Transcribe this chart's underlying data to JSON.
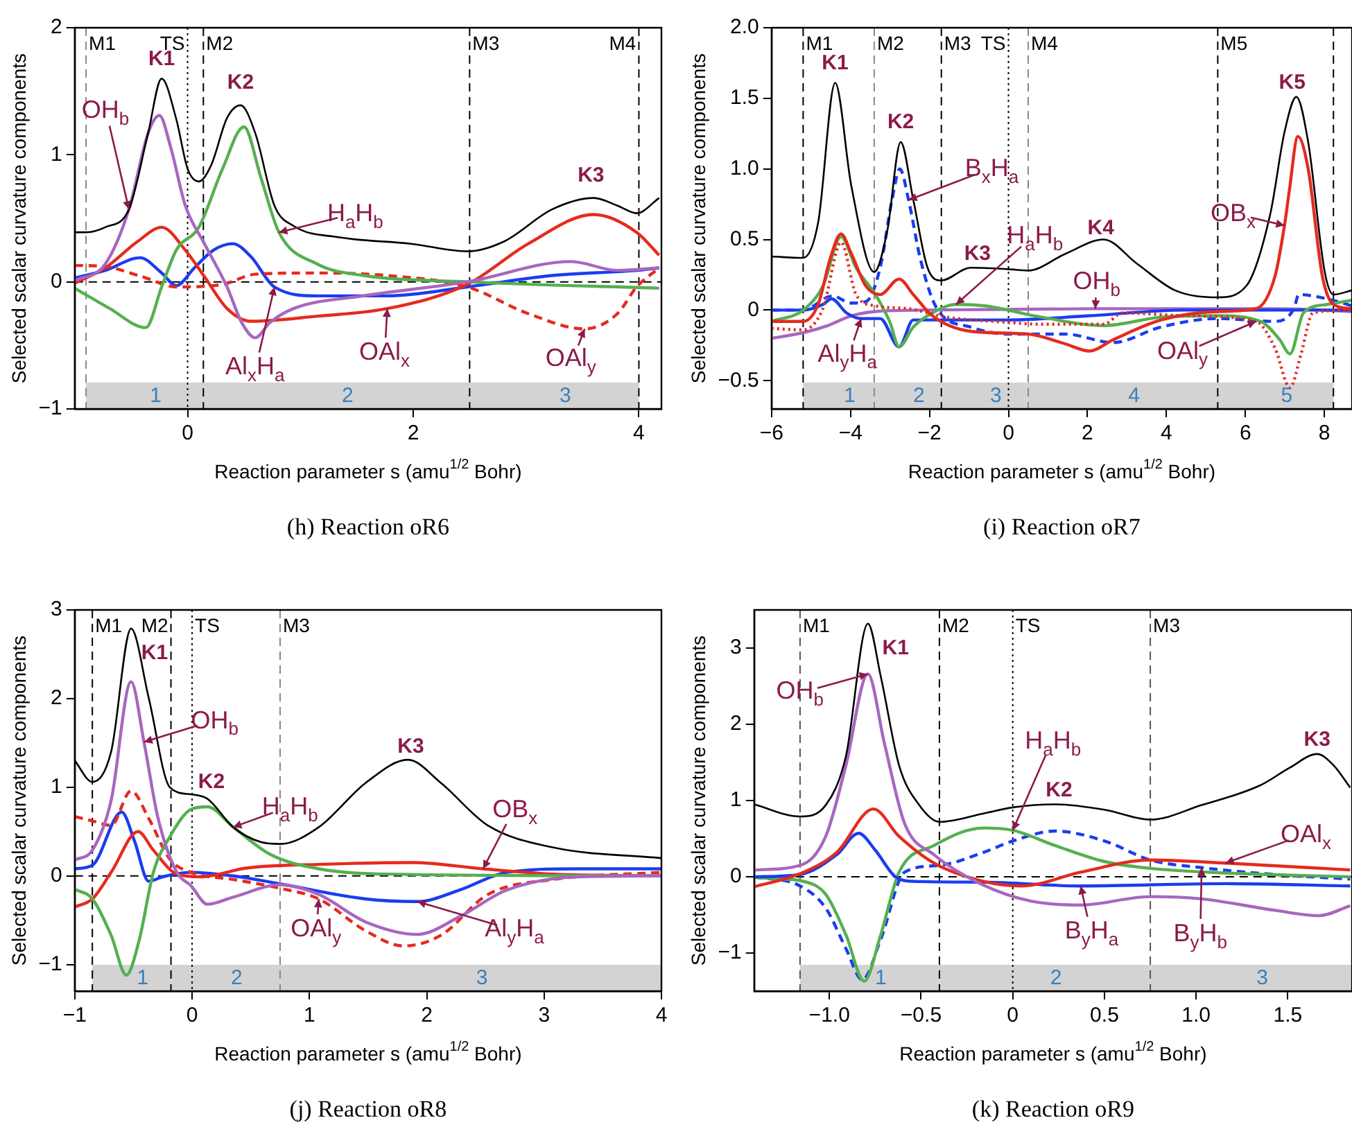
{
  "chart_data": [
    {
      "type": "line",
      "title": "(h) Reaction oR6",
      "xlabel": "Reaction parameter s (amu$^{1/2}$ Bohr)",
      "ylabel": "Selected scalar curvature components",
      "xlim": [
        -1,
        4.2
      ],
      "ylim": [
        -1,
        2
      ],
      "xticks": [
        0,
        2,
        4
      ],
      "yticks": [
        {
          "value": -1,
          "label": "−1"
        },
        0,
        1,
        2
      ],
      "grid": false,
      "legend": false,
      "series": [
        {
          "color": "#000000",
          "x": [
            -1.0,
            -0.9,
            -0.73,
            -0.52,
            -0.35,
            -0.23,
            -0.1,
            0,
            0.1,
            0.21,
            0.35,
            0.47,
            0.6,
            0.77,
            0.94,
            1.35,
            1.98,
            2.48,
            2.81,
            3.23,
            3.6,
            3.81,
            3.98,
            4.18
          ],
          "values": [
            0.39,
            0.39,
            0.43,
            0.57,
            1.17,
            1.6,
            1.28,
            0.89,
            0.79,
            0.92,
            1.29,
            1.39,
            1.17,
            0.6,
            0.44,
            0.35,
            0.3,
            0.24,
            0.32,
            0.57,
            0.66,
            0.6,
            0.54,
            0.66
          ]
        },
        {
          "color": "#a866c0",
          "x": [
            -1.0,
            -0.73,
            -0.52,
            -0.35,
            -0.25,
            -0.15,
            -0.02,
            0.15,
            0.35,
            0.48,
            0.6,
            0.73,
            0.94,
            1.56,
            2.48,
            3.4,
            3.81,
            4.18
          ],
          "values": [
            0.01,
            0.14,
            0.57,
            1.17,
            1.31,
            1.06,
            0.6,
            0.3,
            -0.04,
            -0.32,
            -0.44,
            -0.32,
            -0.21,
            -0.11,
            0,
            0.16,
            0.09,
            0.11
          ]
        },
        {
          "color": "#55b04f",
          "x": [
            -1.0,
            -0.69,
            -0.37,
            -0.23,
            -0.1,
            0.1,
            0.31,
            0.5,
            0.65,
            0.81,
            1.15,
            1.56,
            2.48,
            4.18
          ],
          "values": [
            -0.05,
            -0.21,
            -0.36,
            -0.04,
            0.25,
            0.43,
            0.89,
            1.22,
            0.82,
            0.39,
            0.14,
            0.05,
            0,
            -0.05
          ]
        },
        {
          "color": "#e62a1e",
          "x": [
            -1.0,
            -0.73,
            -0.44,
            -0.23,
            -0.02,
            0.15,
            0.35,
            0.56,
            1.15,
            1.77,
            2.48,
            3.02,
            3.6,
            3.98,
            4.18
          ],
          "values": [
            -0.01,
            0.11,
            0.32,
            0.43,
            0.25,
            0.04,
            -0.21,
            -0.31,
            -0.27,
            -0.21,
            -0.02,
            0.3,
            0.53,
            0.39,
            0.21
          ]
        },
        {
          "color": "#e62a1e",
          "line_style": "dashed",
          "x": [
            -1.0,
            -0.73,
            -0.4,
            -0.1,
            0.31,
            0.6,
            1.15,
            1.77,
            2.48,
            3.02,
            3.52,
            3.81,
            3.98,
            4.18
          ],
          "values": [
            0.13,
            0.12,
            0.04,
            -0.04,
            -0.02,
            0.06,
            0.07,
            0.05,
            -0.04,
            -0.25,
            -0.37,
            -0.25,
            -0.04,
            0.11
          ]
        },
        {
          "color": "#1a3cf0",
          "x": [
            -1.0,
            -0.73,
            -0.42,
            -0.23,
            -0.1,
            0.06,
            0.23,
            0.4,
            0.56,
            0.77,
            1.15,
            1.77,
            2.48,
            3.23,
            3.98,
            4.18
          ],
          "values": [
            0.03,
            0.09,
            0.19,
            0.07,
            -0.03,
            0.11,
            0.25,
            0.3,
            0.2,
            -0.04,
            -0.11,
            -0.11,
            -0.04,
            0.05,
            0.09,
            0.11
          ]
        }
      ],
      "ref_lines": [
        {
          "axis": "y",
          "value": 0,
          "line_style": "dashed",
          "color": "#000000"
        },
        {
          "axis": "x",
          "value": -0.9,
          "label": "M1",
          "line_style": "dashed",
          "color": "#888888"
        },
        {
          "axis": "x",
          "value": 0,
          "label": "TS",
          "line_style": "dotted",
          "color": "#000000"
        },
        {
          "axis": "x",
          "value": 0.14,
          "label": "M2",
          "line_style": "dashed",
          "color": "#000000"
        },
        {
          "axis": "x",
          "value": 2.5,
          "label": "M3",
          "line_style": "dashed",
          "color": "#000000"
        },
        {
          "axis": "x",
          "value": 4.0,
          "label": "M4",
          "line_style": "dashed",
          "color": "#000000"
        }
      ],
      "bands": [
        {
          "axis": "x",
          "from": -0.9,
          "to": 0.14,
          "label": "1",
          "color": "#d3d3d3"
        },
        {
          "axis": "x",
          "from": 0.14,
          "to": 2.5,
          "label": "2",
          "color": "#d3d3d3"
        },
        {
          "axis": "x",
          "from": 2.5,
          "to": 4.0,
          "label": "3",
          "color": "#d3d3d3"
        }
      ],
      "annotations": [
        {
          "text": "K1",
          "x": -0.23,
          "y": 1.6
        },
        {
          "text": "K2",
          "x": 0.47,
          "y": 1.39
        },
        {
          "text": "K3",
          "x": 3.6,
          "y": 0.66
        },
        {
          "text": "OH$_{b}$",
          "x": -0.52,
          "y": 0.57
        },
        {
          "text": "H$_{a}$H$_{b}$",
          "x": 0.81,
          "y": 0.39
        },
        {
          "text": "Al$_{x}$H$_{a}$",
          "x": 0.77,
          "y": -0.04
        },
        {
          "text": "OAl$_{x}$",
          "x": 1.77,
          "y": -0.21
        },
        {
          "text": "OAl$_{y}$",
          "x": 3.52,
          "y": -0.37
        }
      ]
    },
    {
      "type": "line",
      "title": "(i) Reaction oR7",
      "xlabel": "Reaction parameter s (amu$^{1/2}$ Bohr)",
      "ylabel": "Selected scalar curvature components",
      "xlim": [
        -6,
        8.7
      ],
      "ylim": [
        -0.7,
        2.0
      ],
      "xticks": [
        {
          "value": -6,
          "label": "−6"
        },
        {
          "value": -4,
          "label": "−4"
        },
        {
          "value": -2,
          "label": "−2"
        },
        0,
        2,
        4,
        6,
        8
      ],
      "yticks": [
        {
          "value": -0.5,
          "label": "−0.5"
        },
        0,
        {
          "value": 0.5,
          "label": "0.5"
        },
        {
          "value": 1,
          "label": "1.0"
        },
        {
          "value": 1.5,
          "label": "1.5"
        },
        {
          "value": 2,
          "label": "2.0"
        }
      ],
      "grid": false,
      "legend": false,
      "series": [
        {
          "color": "#000000",
          "x": [
            -6,
            -5.2,
            -4.82,
            -4.39,
            -3.98,
            -3.4,
            -3.07,
            -2.73,
            -2.41,
            -2.05,
            -1.7,
            -0.96,
            0,
            0.5,
            1.45,
            2.41,
            3.25,
            4.22,
            5.3,
            6.02,
            6.63,
            6.99,
            7.29,
            7.59,
            8.01,
            8.23,
            8.7
          ],
          "values": [
            0.38,
            0.37,
            0.62,
            1.61,
            0.88,
            0.27,
            0.56,
            1.19,
            0.78,
            0.3,
            0.21,
            0.3,
            0.29,
            0.28,
            0.4,
            0.5,
            0.33,
            0.14,
            0.09,
            0.17,
            0.68,
            1.26,
            1.51,
            1.19,
            0.27,
            0.11,
            0.14
          ]
        },
        {
          "color": "#e62a1e",
          "x": [
            -6,
            -5.2,
            -4.82,
            -4.52,
            -4.24,
            -3.98,
            -3.61,
            -3.25,
            -2.77,
            -2.41,
            -1.93,
            -0.96,
            0.5,
            1.45,
            2.05,
            2.65,
            3.86,
            5.3,
            6.27,
            6.75,
            6.99,
            7.11,
            7.33,
            7.59,
            7.95,
            8.23,
            8.7
          ],
          "values": [
            -0.08,
            -0.08,
            0.04,
            0.36,
            0.54,
            0.4,
            0.17,
            0.11,
            0.22,
            0.11,
            -0.04,
            -0.15,
            -0.17,
            -0.24,
            -0.29,
            -0.21,
            -0.07,
            -0.01,
            0.01,
            0.24,
            0.6,
            0.84,
            1.23,
            1.0,
            0.24,
            0.04,
            0.01
          ]
        },
        {
          "color": "#e62a1e",
          "line_style": "dotted",
          "x": [
            -6,
            -5.2,
            -4.7,
            -4.24,
            -3.86,
            -3.37,
            -2.53,
            -1.57,
            -0.36,
            0.84,
            2.41,
            2.89,
            4.46,
            6.27,
            6.75,
            7.13,
            7.41,
            7.71,
            8.7
          ],
          "values": [
            -0.13,
            -0.14,
            0.01,
            0.48,
            0.11,
            0.03,
            0.01,
            -0.05,
            -0.08,
            -0.1,
            -0.1,
            -0.02,
            -0.04,
            -0.08,
            -0.27,
            -0.55,
            -0.31,
            -0.02,
            0
          ]
        },
        {
          "color": "#55b04f",
          "x": [
            -6,
            -5.2,
            -4.7,
            -4.24,
            -3.86,
            -3.37,
            -3.01,
            -2.77,
            -2.41,
            -1.93,
            -1.33,
            -0.6,
            0.84,
            2.41,
            3.86,
            5.3,
            6.39,
            6.87,
            7.13,
            7.47,
            8.07,
            8.7
          ],
          "values": [
            -0.08,
            0,
            0.17,
            0.52,
            0.3,
            0.11,
            -0.08,
            -0.26,
            -0.12,
            -0.02,
            0.04,
            0.03,
            -0.05,
            -0.11,
            -0.05,
            -0.04,
            -0.08,
            -0.21,
            -0.31,
            -0.02,
            0.04,
            0.07
          ]
        },
        {
          "color": "#1a3cf0",
          "x": [
            -6,
            -5.2,
            -4.7,
            -4.48,
            -4.1,
            -3.73,
            -3.25,
            -2.77,
            -2.41,
            -1.57,
            0,
            2.05,
            4.46,
            8.7
          ],
          "values": [
            0,
            0,
            0.04,
            0.08,
            -0.02,
            -0.06,
            -0.06,
            -0.26,
            -0.07,
            -0.07,
            -0.07,
            -0.04,
            0,
            0
          ]
        },
        {
          "color": "#1a3cf0",
          "line_style": "dashed",
          "x": [
            -6,
            -5.2,
            -4.46,
            -3.98,
            -3.61,
            -3.25,
            -2.95,
            -2.75,
            -2.53,
            -2.23,
            -1.81,
            -0.96,
            0,
            1.45,
            2.65,
            3.86,
            5.3,
            6.75,
            7.23,
            7.35,
            8.07,
            8.7
          ],
          "values": [
            0,
            0,
            0.1,
            0.05,
            0.06,
            0.3,
            0.78,
            1.0,
            0.78,
            0.36,
            0.01,
            -0.12,
            -0.17,
            -0.17,
            -0.23,
            -0.12,
            -0.06,
            -0.08,
            0.01,
            0.11,
            0.08,
            0.03
          ]
        },
        {
          "color": "#a866c0",
          "x": [
            -6,
            -5.2,
            -4.58,
            -3.98,
            -3.37,
            -2.17,
            2.2,
            3.25,
            6.87,
            8.7
          ],
          "values": [
            -0.2,
            -0.16,
            -0.11,
            -0.04,
            -0.01,
            0,
            0.01,
            0.01,
            0.01,
            -0.01
          ]
        }
      ],
      "ref_lines": [
        {
          "axis": "x",
          "value": -5.2,
          "label": "M1",
          "line_style": "dashed",
          "color": "#000000"
        },
        {
          "axis": "x",
          "value": -3.4,
          "label": "M2",
          "line_style": "dashed",
          "color": "#888888"
        },
        {
          "axis": "x",
          "value": -1.7,
          "label": "M3",
          "line_style": "dashed",
          "color": "#000000"
        },
        {
          "axis": "x",
          "value": 0,
          "label": "TS",
          "line_style": "dotted",
          "color": "#000000"
        },
        {
          "axis": "x",
          "value": 0.5,
          "label": "M4",
          "line_style": "dashed",
          "color": "#888888"
        },
        {
          "axis": "x",
          "value": 5.3,
          "label": "M5",
          "line_style": "dashed",
          "color": "#000000"
        },
        {
          "axis": "x",
          "value": 8.23,
          "label": null,
          "line_style": "dashed",
          "color": "#000000"
        }
      ],
      "bands": [
        {
          "axis": "x",
          "from": -5.2,
          "to": -3.4,
          "label": "1",
          "color": "#d3d3d3"
        },
        {
          "axis": "x",
          "from": -3.4,
          "to": -1.7,
          "label": "2",
          "color": "#d3d3d3"
        },
        {
          "axis": "x",
          "from": -1.7,
          "to": 0.5,
          "label": "3",
          "color": "#d3d3d3"
        },
        {
          "axis": "x",
          "from": 0.5,
          "to": 5.3,
          "label": "4",
          "color": "#d3d3d3"
        },
        {
          "axis": "x",
          "from": 5.3,
          "to": 8.23,
          "label": "5",
          "color": "#d3d3d3"
        }
      ],
      "annotations": [
        {
          "text": "K1",
          "x": -4.39,
          "y": 1.61
        },
        {
          "text": "K2",
          "x": -2.73,
          "y": 1.19
        },
        {
          "text": "K3",
          "x": -0.96,
          "y": 0.3
        },
        {
          "text": "K4",
          "x": 2.41,
          "y": 0.5
        },
        {
          "text": "K5",
          "x": 7.29,
          "y": 1.51
        },
        {
          "text": "B$_{x}$H$_{a}$",
          "x": -2.53,
          "y": 0.78
        },
        {
          "text": "H$_{a}$H$_{b}$",
          "x": -1.33,
          "y": 0.04
        },
        {
          "text": "OH$_{b}$",
          "x": 2.2,
          "y": 0.01
        },
        {
          "text": "OB$_{x}$",
          "x": 6.99,
          "y": 0.6
        },
        {
          "text": "OAl$_{y}$",
          "x": 6.27,
          "y": -0.08
        },
        {
          "text": "Al$_{y}$H$_{a}$",
          "x": -3.73,
          "y": -0.06
        }
      ]
    },
    {
      "type": "line",
      "title": "(j) Reaction oR8",
      "xlabel": "Reaction parameter s (amu$^{1/2}$ Bohr)",
      "ylabel": "Selected scalar curvature components",
      "xlim": [
        -1,
        4
      ],
      "ylim": [
        -1.3,
        3
      ],
      "xticks": [
        {
          "value": -1,
          "label": "−1"
        },
        0,
        1,
        2,
        3,
        4
      ],
      "yticks": [
        {
          "value": -1,
          "label": "−1"
        },
        0,
        1,
        2,
        3
      ],
      "grid": false,
      "legend": false,
      "series": [
        {
          "color": "#000000",
          "x": [
            -1,
            -0.85,
            -0.69,
            -0.52,
            -0.37,
            -0.19,
            -0.01,
            0.13,
            0.35,
            0.59,
            0.75,
            1.08,
            1.48,
            1.84,
            2.12,
            2.52,
            3.08,
            4.0
          ],
          "values": [
            1.3,
            1.06,
            1.4,
            2.79,
            2.01,
            1.0,
            0.92,
            0.87,
            0.55,
            0.38,
            0.36,
            0.55,
            1.05,
            1.31,
            1.05,
            0.57,
            0.32,
            0.2
          ]
        },
        {
          "color": "#a866c0",
          "x": [
            -1,
            -0.85,
            -0.69,
            -0.52,
            -0.41,
            -0.29,
            -0.13,
            -0.01,
            0.13,
            0.35,
            0.75,
            1.08,
            1.48,
            1.92,
            2.28,
            2.68,
            3.29,
            4.0
          ],
          "values": [
            0.18,
            0.29,
            0.85,
            2.19,
            1.51,
            0.65,
            0.04,
            -0.11,
            -0.32,
            -0.24,
            -0.1,
            -0.21,
            -0.52,
            -0.66,
            -0.46,
            -0.16,
            -0.01,
            0
          ]
        },
        {
          "color": "#55b04f",
          "x": [
            -1,
            -0.85,
            -0.69,
            -0.56,
            -0.45,
            -0.33,
            -0.19,
            -0.01,
            0.13,
            0.35,
            0.67,
            1.08,
            1.68,
            4.0
          ],
          "values": [
            -0.15,
            -0.26,
            -0.67,
            -1.12,
            -0.72,
            0.04,
            0.44,
            0.75,
            0.78,
            0.55,
            0.24,
            0.08,
            0.02,
            0
          ]
        },
        {
          "color": "#e62a1e",
          "line_style": "dashed",
          "x": [
            -1,
            -0.85,
            -0.69,
            -0.52,
            -0.37,
            -0.19,
            -0.01,
            0.35,
            0.75,
            1.08,
            1.48,
            1.8,
            2.12,
            2.52,
            3.08,
            4.0
          ],
          "values": [
            0.67,
            0.62,
            0.57,
            0.96,
            0.65,
            0.19,
            0.04,
            -0.04,
            -0.14,
            -0.26,
            -0.62,
            -0.79,
            -0.67,
            -0.21,
            -0.04,
            0.04
          ]
        },
        {
          "color": "#e62a1e",
          "x": [
            -1,
            -0.85,
            -0.69,
            -0.46,
            -0.33,
            -0.13,
            0.07,
            0.47,
            1.08,
            1.88,
            2.48,
            3.08,
            4.0
          ],
          "values": [
            -0.35,
            -0.26,
            0.04,
            0.5,
            0.29,
            0.02,
            -0.01,
            0.09,
            0.13,
            0.15,
            0.08,
            0.02,
            0
          ]
        },
        {
          "color": "#1a3cf0",
          "x": [
            -1,
            -0.85,
            -0.6,
            -0.49,
            -0.37,
            -0.25,
            -0.01,
            0.35,
            0.75,
            1.48,
            1.92,
            2.28,
            2.68,
            3.29,
            4.0
          ],
          "values": [
            0.08,
            0.12,
            0.72,
            0.39,
            -0.06,
            -0.01,
            0.04,
            0,
            -0.09,
            -0.26,
            -0.29,
            -0.16,
            0.04,
            0.08,
            0.08
          ]
        }
      ],
      "ref_lines": [
        {
          "axis": "y",
          "value": 0,
          "line_style": "dashed",
          "color": "#000000"
        },
        {
          "axis": "x",
          "value": -0.85,
          "label": "M1",
          "line_style": "dashed",
          "color": "#000000"
        },
        {
          "axis": "x",
          "value": -0.18,
          "label": "M2",
          "line_style": "dashed",
          "color": "#000000"
        },
        {
          "axis": "x",
          "value": 0,
          "label": "TS",
          "line_style": "dotted",
          "color": "#000000"
        },
        {
          "axis": "x",
          "value": 0.75,
          "label": "M3",
          "line_style": "dashed",
          "color": "#888888"
        }
      ],
      "bands": [
        {
          "axis": "x",
          "from": -0.85,
          "to": -0.18,
          "label": "1",
          "color": "#d3d3d3"
        },
        {
          "axis": "x",
          "from": -0.18,
          "to": 0.75,
          "label": "2",
          "color": "#d3d3d3"
        },
        {
          "axis": "x",
          "from": 0.75,
          "to": 4,
          "label": "3",
          "color": "#d3d3d3"
        }
      ],
      "annotations": [
        {
          "text": "K1",
          "x": -0.52,
          "y": 2.79
        },
        {
          "text": "K2",
          "x": 0.13,
          "y": 0.87
        },
        {
          "text": "K3",
          "x": 1.84,
          "y": 1.31
        },
        {
          "text": "OH$_{b}$",
          "x": -0.41,
          "y": 1.51
        },
        {
          "text": "H$_{a}$H$_{b}$",
          "x": 0.35,
          "y": 0.55
        },
        {
          "text": "OB$_{x}$",
          "x": 2.48,
          "y": 0.08
        },
        {
          "text": "OAl$_{y}$",
          "x": 1.08,
          "y": -0.26
        },
        {
          "text": "Al$_{y}$H$_{a}$",
          "x": 1.92,
          "y": -0.29
        }
      ]
    },
    {
      "type": "line",
      "title": "(k) Reaction oR9",
      "xlabel": "Reaction parameter s (amu$^{1/2}$ Bohr)",
      "ylabel": "Selected scalar curvature components",
      "xlim": [
        -1.41,
        1.85
      ],
      "ylim": [
        -1.5,
        3.5
      ],
      "xticks": [
        {
          "value": -1,
          "label": "−1.0"
        },
        {
          "value": -0.5,
          "label": "−0.5"
        },
        0,
        0.5,
        {
          "value": 1,
          "label": "1.0"
        },
        1.5
      ],
      "yticks": [
        {
          "value": -1,
          "label": "−1"
        },
        0,
        1,
        2,
        3
      ],
      "grid": false,
      "legend": false,
      "series": [
        {
          "color": "#000000",
          "x": [
            -1.41,
            -1.16,
            -1.02,
            -0.91,
            -0.79,
            -0.72,
            -0.62,
            -0.51,
            -0.4,
            -0.16,
            0,
            0.23,
            0.5,
            0.75,
            1.03,
            1.35,
            1.51,
            1.66,
            1.75,
            1.84
          ],
          "values": [
            0.95,
            0.79,
            0.94,
            1.58,
            3.32,
            2.63,
            1.46,
            0.94,
            0.72,
            0.83,
            0.91,
            0.95,
            0.88,
            0.75,
            0.94,
            1.2,
            1.43,
            1.61,
            1.46,
            1.17
          ]
        },
        {
          "color": "#a866c0",
          "x": [
            -1.41,
            -1.16,
            -1.02,
            -0.91,
            -0.79,
            -0.7,
            -0.59,
            -0.43,
            -0.16,
            0.1,
            0.37,
            0.75,
            1.03,
            1.43,
            1.67,
            1.84
          ],
          "values": [
            0.09,
            0.15,
            0.53,
            1.46,
            2.66,
            1.75,
            0.7,
            0.29,
            -0.11,
            -0.32,
            -0.37,
            -0.26,
            -0.29,
            -0.44,
            -0.51,
            -0.38
          ]
        },
        {
          "color": "#e62a1e",
          "x": [
            -1.41,
            -1.16,
            -0.96,
            -0.76,
            -0.62,
            -0.43,
            -0.16,
            0.05,
            0.37,
            0.75,
            1.16,
            1.84
          ],
          "values": [
            -0.13,
            0.04,
            0.32,
            0.89,
            0.53,
            0.18,
            -0.06,
            -0.12,
            0.06,
            0.22,
            0.18,
            0.09
          ]
        },
        {
          "color": "#1a3cf0",
          "x": [
            -1.41,
            -1.16,
            -0.96,
            -0.84,
            -0.75,
            -0.64,
            -0.54,
            -0.16,
            0.37,
            1.16,
            1.84
          ],
          "values": [
            0,
            0.03,
            0.29,
            0.57,
            0.35,
            0,
            -0.06,
            -0.07,
            -0.12,
            -0.09,
            -0.12
          ]
        },
        {
          "color": "#55b04f",
          "x": [
            -1.41,
            -1.26,
            -1.16,
            -1.02,
            -0.91,
            -0.81,
            -0.72,
            -0.62,
            -0.43,
            -0.16,
            0,
            0.23,
            0.5,
            0.75,
            1.16,
            1.84
          ],
          "values": [
            -0.01,
            -0.03,
            -0.05,
            -0.23,
            -0.76,
            -1.37,
            -0.76,
            0.06,
            0.41,
            0.64,
            0.61,
            0.41,
            0.2,
            0.11,
            0.05,
            0
          ]
        },
        {
          "color": "#1a3cf0",
          "line_style": "dashed",
          "x": [
            -1.41,
            -1.16,
            -1.02,
            -0.91,
            -0.82,
            -0.72,
            -0.59,
            -0.4,
            -0.16,
            0,
            0.23,
            0.5,
            0.75,
            1.03,
            1.43,
            1.84
          ],
          "values": [
            0,
            -0.12,
            -0.41,
            -0.94,
            -1.35,
            -0.82,
            0.06,
            0.15,
            0.32,
            0.47,
            0.6,
            0.47,
            0.22,
            0.12,
            0.03,
            -0.03
          ]
        }
      ],
      "ref_lines": [
        {
          "axis": "y",
          "value": 0,
          "line_style": "dashed",
          "color": "#000000"
        },
        {
          "axis": "x",
          "value": -1.16,
          "label": "M1",
          "line_style": "dashed",
          "color": "#555555"
        },
        {
          "axis": "x",
          "value": -0.4,
          "label": "M2",
          "line_style": "dashed",
          "color": "#000000"
        },
        {
          "axis": "x",
          "value": 0,
          "label": "TS",
          "line_style": "dotted",
          "color": "#000000"
        },
        {
          "axis": "x",
          "value": 0.75,
          "label": "M3",
          "line_style": "dashed",
          "color": "#555555"
        }
      ],
      "bands": [
        {
          "axis": "x",
          "from": -1.16,
          "to": -0.4,
          "label": "1",
          "color": "#d3d3d3"
        },
        {
          "axis": "x",
          "from": -0.4,
          "to": 0.75,
          "label": "2",
          "color": "#d3d3d3"
        },
        {
          "axis": "x",
          "from": 0.75,
          "to": 1.85,
          "label": "3",
          "color": "#d3d3d3"
        }
      ],
      "annotations": [
        {
          "text": "K1",
          "x": -0.79,
          "y": 3.32
        },
        {
          "text": "K2",
          "x": 0.23,
          "y": 0.95
        },
        {
          "text": "K3",
          "x": 1.66,
          "y": 1.61
        },
        {
          "text": "OH$_{b}$",
          "x": -0.79,
          "y": 2.66
        },
        {
          "text": "H$_{a}$H$_{b}$",
          "x": 0,
          "y": 0.61
        },
        {
          "text": "OAl$_{x}$",
          "x": 1.16,
          "y": 0.18
        },
        {
          "text": "B$_{y}$H$_{a}$",
          "x": 0.37,
          "y": -0.12
        },
        {
          "text": "B$_{y}$H$_{b}$",
          "x": 1.03,
          "y": 0.12
        }
      ]
    }
  ]
}
